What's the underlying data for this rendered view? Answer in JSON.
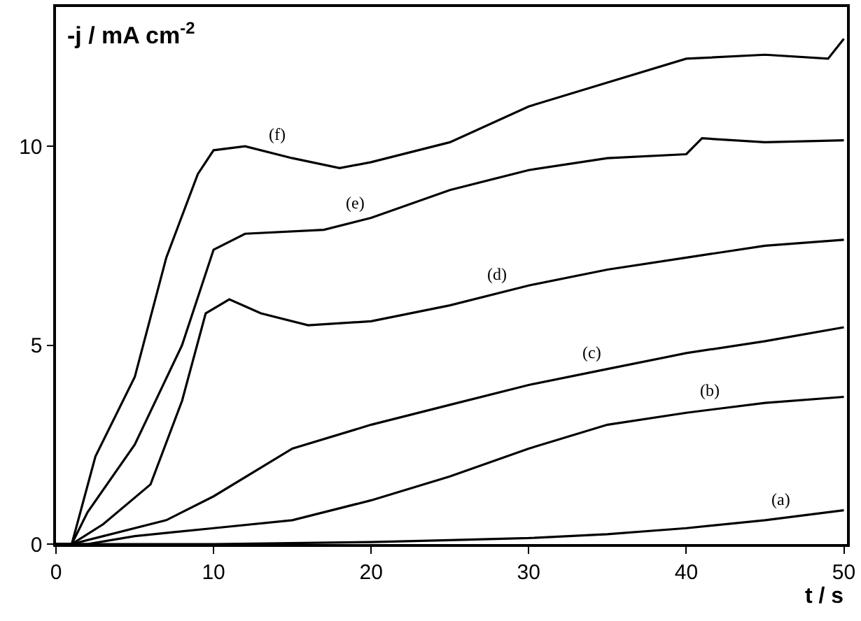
{
  "chart_data": {
    "type": "line",
    "xlabel": "t / s",
    "ylabel": "-j / mA cm$^{-2}$",
    "xlim": [
      0,
      50.2
    ],
    "ylim": [
      0,
      13.5
    ],
    "xticks": [
      0,
      10,
      20,
      30,
      40,
      50
    ],
    "yticks": [
      0,
      5,
      10
    ],
    "grid": false,
    "legend": false,
    "marker": "none",
    "line_style": "solid",
    "series": [
      {
        "name": "(a)",
        "color": "#000000",
        "x": [
          0,
          10,
          20,
          25,
          30,
          35,
          40,
          45,
          50
        ],
        "values": [
          0,
          0,
          0.05,
          0.1,
          0.15,
          0.25,
          0.4,
          0.6,
          0.85
        ]
      },
      {
        "name": "(b)",
        "color": "#000000",
        "x": [
          0,
          2,
          5,
          10,
          15,
          20,
          25,
          30,
          35,
          40,
          45,
          50
        ],
        "values": [
          0,
          0,
          0.2,
          0.4,
          0.6,
          1.1,
          1.7,
          2.4,
          3.0,
          3.3,
          3.55,
          3.7
        ]
      },
      {
        "name": "(c)",
        "color": "#000000",
        "x": [
          0,
          1,
          3,
          7,
          10,
          15,
          20,
          25,
          30,
          35,
          40,
          45,
          50
        ],
        "values": [
          0,
          0,
          0.2,
          0.6,
          1.2,
          2.4,
          3.0,
          3.5,
          4.0,
          4.4,
          4.8,
          5.1,
          5.45
        ]
      },
      {
        "name": "(d)",
        "color": "#000000",
        "x": [
          0,
          1,
          3,
          6,
          8,
          9.5,
          11,
          13,
          16,
          20,
          25,
          30,
          35,
          40,
          45,
          50
        ],
        "values": [
          0,
          0,
          0.5,
          1.5,
          3.6,
          5.8,
          6.15,
          5.8,
          5.5,
          5.6,
          6.0,
          6.5,
          6.9,
          7.2,
          7.5,
          7.65
        ]
      },
      {
        "name": "(e)",
        "color": "#000000",
        "x": [
          0,
          1,
          2,
          5,
          8,
          10,
          12,
          17,
          20,
          25,
          30,
          35,
          40,
          41,
          45,
          50
        ],
        "values": [
          0,
          0,
          0.8,
          2.5,
          5.0,
          7.4,
          7.8,
          7.9,
          8.2,
          8.9,
          9.4,
          9.7,
          9.8,
          10.2,
          10.1,
          10.15
        ]
      },
      {
        "name": "(f)",
        "color": "#000000",
        "x": [
          0,
          1,
          2.5,
          5,
          7,
          9,
          10,
          12,
          15,
          18,
          20,
          25,
          30,
          35,
          40,
          45,
          49,
          50
        ],
        "values": [
          0,
          0,
          2.2,
          4.2,
          7.2,
          9.3,
          9.9,
          10.0,
          9.7,
          9.45,
          9.6,
          10.1,
          11.0,
          11.6,
          12.2,
          12.3,
          12.2,
          12.7
        ]
      }
    ]
  }
}
